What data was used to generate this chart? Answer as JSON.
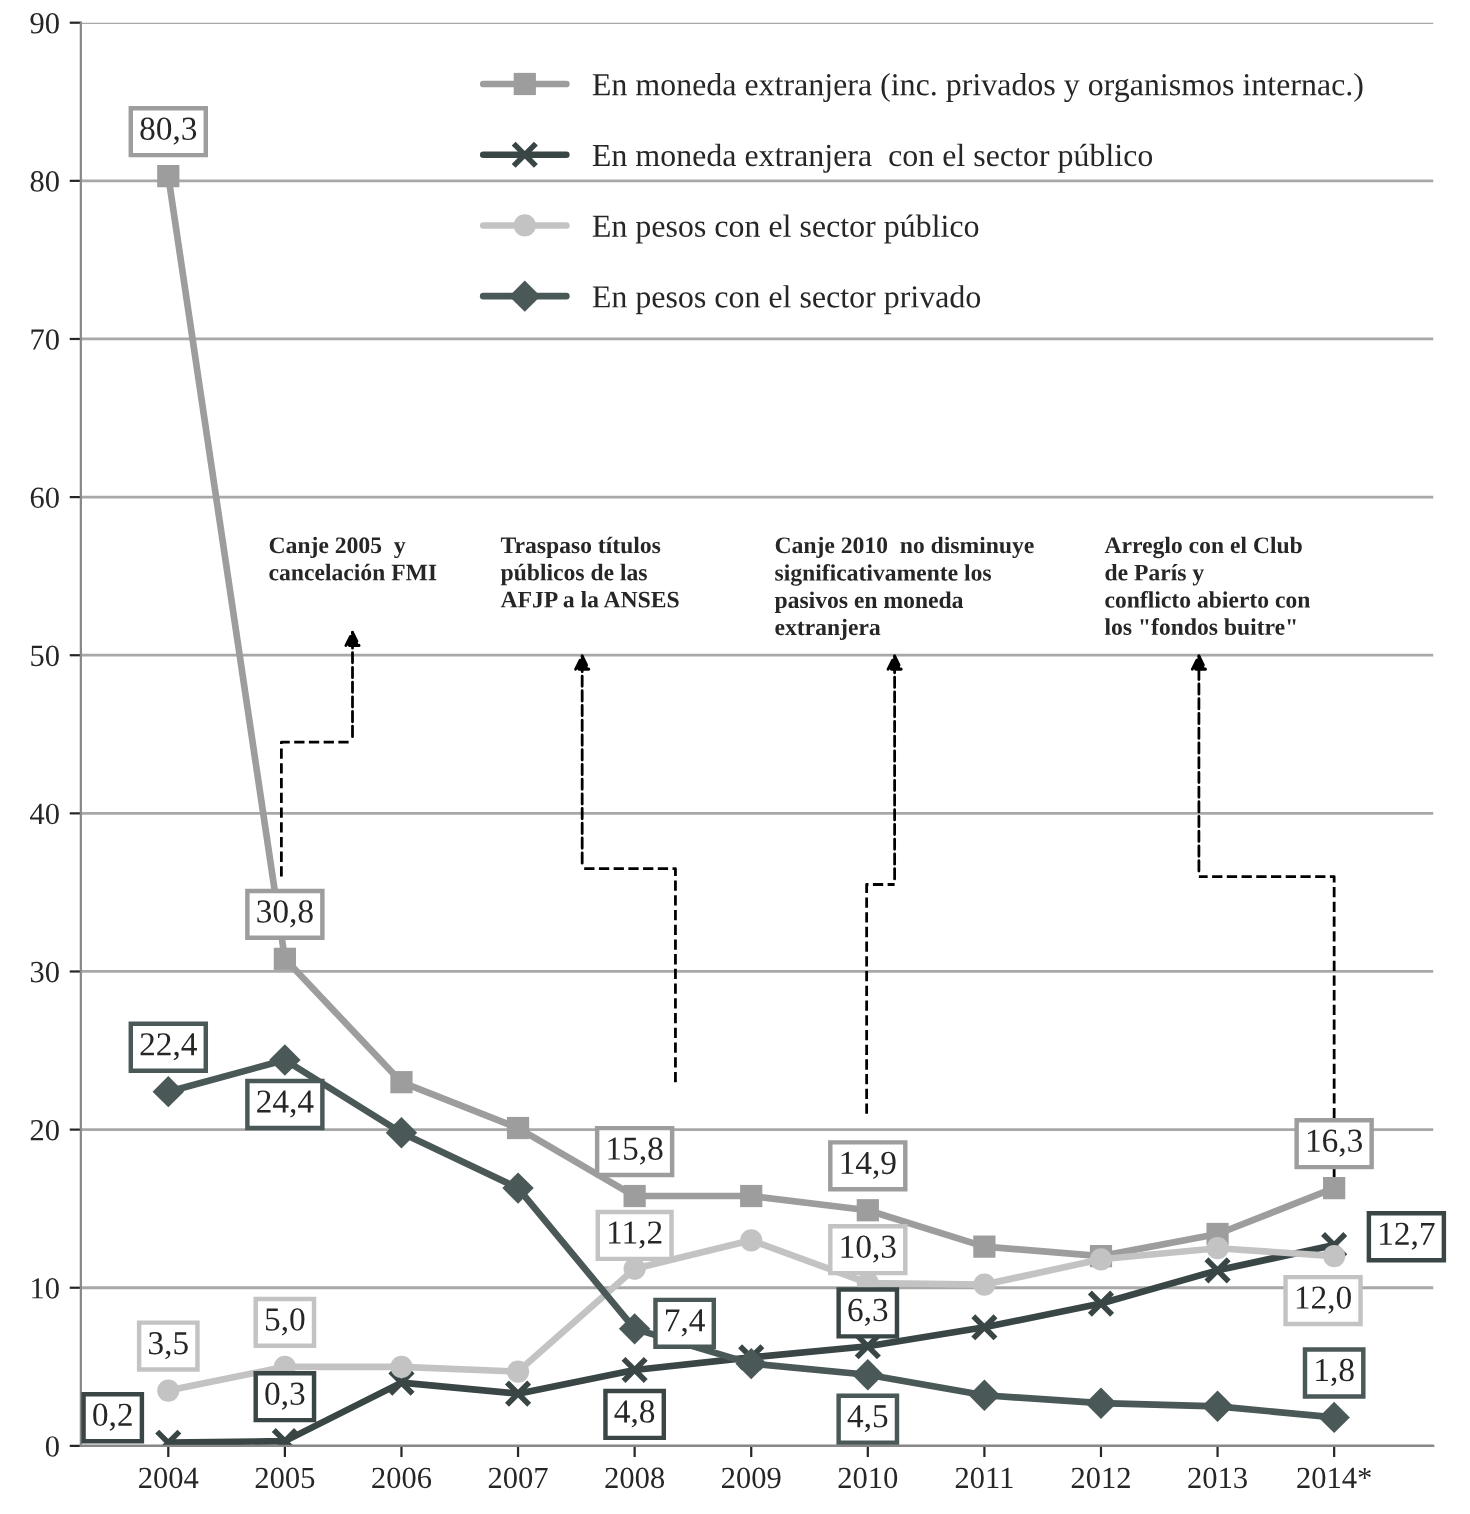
{
  "chart_data": {
    "type": "line",
    "categories": [
      "2004",
      "2005",
      "2006",
      "2007",
      "2008",
      "2009",
      "2010",
      "2011",
      "2012",
      "2013",
      "2014*"
    ],
    "series": [
      {
        "name": "En moneda extranjera (inc. privados y organismos internac.)",
        "color": "#9d9d9d",
        "marker": "square",
        "values": [
          80.3,
          30.8,
          23.0,
          20.1,
          15.8,
          15.8,
          14.9,
          12.6,
          12.0,
          13.4,
          16.3
        ],
        "value_labels": [
          "80,3",
          "30,8",
          null,
          null,
          "15,8",
          null,
          "14,9",
          null,
          null,
          null,
          "16,3"
        ]
      },
      {
        "name": "En moneda extranjera  con el sector público",
        "color": "#3a4646",
        "marker": "cross",
        "values": [
          0.2,
          0.3,
          4.0,
          3.3,
          4.8,
          5.6,
          6.3,
          7.5,
          9.0,
          11.1,
          12.7
        ],
        "value_labels": [
          "0,2",
          "0,3",
          null,
          null,
          "4,8",
          null,
          "6,3",
          null,
          null,
          null,
          "12,7"
        ]
      },
      {
        "name": "En pesos con el sector público",
        "color": "#c3c3c3",
        "marker": "circle",
        "values": [
          3.5,
          5.0,
          5.0,
          4.7,
          11.2,
          13.0,
          10.3,
          10.2,
          11.8,
          12.5,
          12.0
        ],
        "value_labels": [
          "3,5",
          "5,0",
          null,
          null,
          "11,2",
          null,
          "10,3",
          null,
          null,
          null,
          "12,0"
        ]
      },
      {
        "name": "En pesos con el sector privado",
        "color": "#4b5858",
        "marker": "diamond",
        "values": [
          22.4,
          24.4,
          19.8,
          16.3,
          7.4,
          5.2,
          4.5,
          3.2,
          2.7,
          2.5,
          1.8
        ],
        "value_labels": [
          "22,4",
          "24,4",
          null,
          null,
          "7,4",
          null,
          "4,5",
          null,
          null,
          null,
          "1,8"
        ]
      }
    ],
    "ylim": [
      0,
      90
    ],
    "yticks": [
      0,
      10,
      20,
      30,
      40,
      50,
      60,
      70,
      80,
      90
    ],
    "grid": "y",
    "legend": "top right",
    "line_style": "solid",
    "annotations": [
      "Canje 2005  y\ncancelación FMI",
      "Traspaso títulos\npúblicos de las\nAFJP a la ANSES",
      "Canje 2010  no disminuye\nsignificativamente los\npasivos en moneda\nextranjera",
      "Arreglo con el Club\nde París y\nconflicto abierto con\nlos \"fondos buitre\""
    ]
  }
}
